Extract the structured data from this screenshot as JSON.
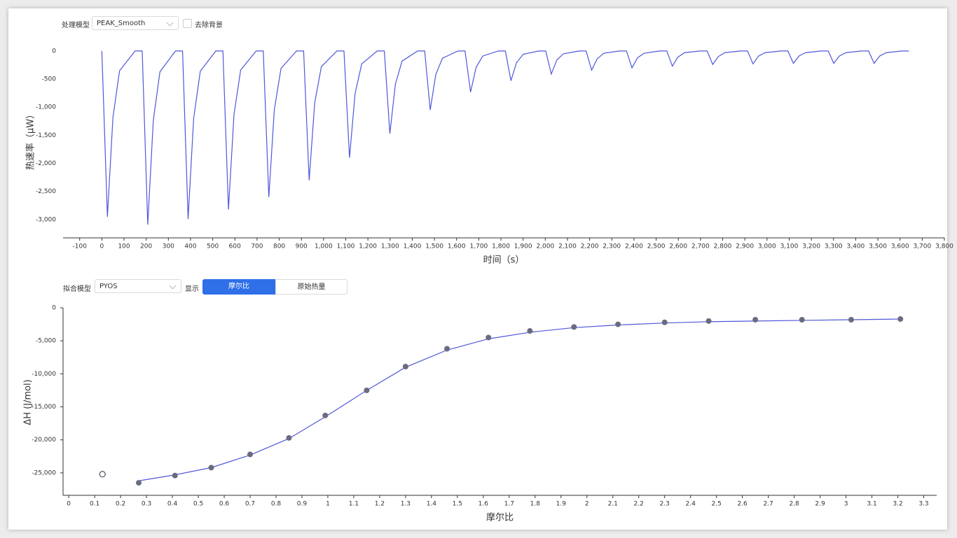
{
  "controls_top": {
    "model_label": "处理模型",
    "model_value": "PEAK_Smooth",
    "checkbox_label": "去除背景"
  },
  "controls_bottom": {
    "fit_label": "拟合模型",
    "fit_value": "PYOS",
    "display_label": "显示",
    "tabs": [
      "摩尔比",
      "原始热量"
    ]
  },
  "chart_data": [
    {
      "type": "line",
      "x_label": "时间（s）",
      "y_label": "热速率（μW）",
      "color": "#4f57d9",
      "x": [
        0,
        25,
        50,
        80,
        150,
        182,
        207,
        232,
        262,
        332,
        364,
        389,
        414,
        444,
        514,
        546,
        571,
        596,
        626,
        696,
        728,
        753,
        778,
        808,
        878,
        910,
        935,
        960,
        990,
        1060,
        1092,
        1117,
        1142,
        1172,
        1242,
        1274,
        1299,
        1324,
        1354,
        1424,
        1456,
        1481,
        1506,
        1536,
        1606,
        1638,
        1663,
        1688,
        1718,
        1788,
        1820,
        1845,
        1870,
        1900,
        1970,
        2002,
        2027,
        2052,
        2082,
        2152,
        2184,
        2209,
        2234,
        2264,
        2334,
        2366,
        2391,
        2416,
        2446,
        2516,
        2548,
        2573,
        2598,
        2628,
        2698,
        2730,
        2755,
        2780,
        2810,
        2880,
        2912,
        2937,
        2962,
        2992,
        3062,
        3094,
        3119,
        3144,
        3174,
        3244,
        3276,
        3301,
        3326,
        3356,
        3426,
        3458,
        3483,
        3508,
        3538,
        3608,
        3640
      ],
      "values": [
        0,
        -2950,
        -1180,
        -350,
        0,
        0,
        -3090,
        -1240,
        -370,
        0,
        0,
        -2990,
        -1200,
        -360,
        0,
        0,
        -2820,
        -1130,
        -340,
        0,
        0,
        -2600,
        -1040,
        -310,
        0,
        0,
        -2300,
        -920,
        -280,
        0,
        0,
        -1900,
        -760,
        -230,
        0,
        0,
        -1470,
        -590,
        -180,
        0,
        0,
        -1050,
        -420,
        -130,
        0,
        0,
        -730,
        -290,
        -90,
        0,
        0,
        -530,
        -210,
        -60,
        0,
        0,
        -410,
        -160,
        -50,
        0,
        0,
        -340,
        -140,
        -40,
        0,
        0,
        -300,
        -120,
        -40,
        0,
        0,
        -270,
        -110,
        -30,
        0,
        0,
        -240,
        -100,
        -30,
        0,
        0,
        -230,
        -90,
        -30,
        0,
        0,
        -220,
        -90,
        -30,
        0,
        0,
        -220,
        -90,
        -30,
        0,
        0,
        -220,
        -90,
        -30,
        0,
        0
      ],
      "xlim": [
        -175,
        3800
      ],
      "ylim": [
        -3325,
        160
      ],
      "xticks": [
        -100,
        0,
        100,
        200,
        300,
        400,
        500,
        600,
        700,
        800,
        900,
        {
          "value": 1000,
          "label": "1,000"
        },
        {
          "value": 1100,
          "label": "1,100"
        },
        {
          "value": 1200,
          "label": "1,200"
        },
        {
          "value": 1300,
          "label": "1,300"
        },
        {
          "value": 1400,
          "label": "1,400"
        },
        {
          "value": 1500,
          "label": "1,500"
        },
        {
          "value": 1600,
          "label": "1,600"
        },
        {
          "value": 1700,
          "label": "1,700"
        },
        {
          "value": 1800,
          "label": "1,800"
        },
        {
          "value": 1900,
          "label": "1,900"
        },
        {
          "value": 2000,
          "label": "2,000"
        },
        {
          "value": 2100,
          "label": "2,100"
        },
        {
          "value": 2200,
          "label": "2,200"
        },
        {
          "value": 2300,
          "label": "2,300"
        },
        {
          "value": 2400,
          "label": "2,400"
        },
        {
          "value": 2500,
          "label": "2,500"
        },
        {
          "value": 2600,
          "label": "2,600"
        },
        {
          "value": 2700,
          "label": "2,700"
        },
        {
          "value": 2800,
          "label": "2,800"
        },
        {
          "value": 2900,
          "label": "2,900"
        },
        {
          "value": 3000,
          "label": "3,000"
        },
        {
          "value": 3100,
          "label": "3,100"
        },
        {
          "value": 3200,
          "label": "3,200"
        },
        {
          "value": 3300,
          "label": "3,300"
        },
        {
          "value": 3400,
          "label": "3,400"
        },
        {
          "value": 3500,
          "label": "3,500"
        },
        {
          "value": 3600,
          "label": "3,600"
        },
        {
          "value": 3700,
          "label": "3,700"
        },
        {
          "value": 3800,
          "label": "3,800"
        }
      ],
      "yticks": [
        0,
        -500,
        {
          "value": -1000,
          "label": "-1,000"
        },
        {
          "value": -1500,
          "label": "-1,500"
        },
        {
          "value": -2000,
          "label": "-2,000"
        },
        {
          "value": -2500,
          "label": "-2,500"
        },
        {
          "value": -3000,
          "label": "-3,000"
        }
      ]
    },
    {
      "type": "scatter",
      "x_label": "摩尔比",
      "y_label": "ΔH (J/mol)",
      "series": [
        {
          "color": "#6b6b80",
          "marker": "filled",
          "x": [
            0.27,
            0.41,
            0.55,
            0.7,
            0.85,
            0.99,
            1.15,
            1.3,
            1.46,
            1.62,
            1.78,
            1.95,
            2.12,
            2.3,
            2.47,
            2.65,
            2.83,
            3.02,
            3.21
          ],
          "values": [
            -26500,
            -25400,
            -24200,
            -22200,
            -19700,
            -16300,
            -12500,
            -8900,
            -6200,
            -4500,
            -3500,
            -2900,
            -2500,
            -2200,
            -2000,
            -1800,
            -1800,
            -1800,
            -1700
          ]
        },
        {
          "color": "#6b6b80",
          "marker": "hollow",
          "x": [
            0.13
          ],
          "values": [
            -25200
          ]
        }
      ],
      "fit_line": {
        "color": "#4f57d9",
        "x": [
          0.27,
          0.41,
          0.55,
          0.7,
          0.85,
          0.99,
          1.07,
          1.15,
          1.3,
          1.46,
          1.62,
          1.78,
          1.95,
          2.12,
          2.3,
          2.47,
          2.65,
          2.83,
          3.02,
          3.21
        ],
        "values": [
          -26200,
          -25300,
          -24200,
          -22300,
          -19800,
          -16500,
          -14500,
          -12500,
          -9000,
          -6400,
          -4700,
          -3700,
          -3000,
          -2600,
          -2300,
          -2100,
          -2000,
          -1900,
          -1800,
          -1700
        ]
      },
      "xlim": [
        -0.022,
        3.35
      ],
      "ylim": [
        -28400,
        0
      ],
      "xticks": [
        0,
        0.1,
        0.2,
        0.3,
        0.4,
        0.5,
        0.6,
        0.7,
        0.8,
        0.9,
        1,
        1.1,
        1.2,
        1.3,
        1.4,
        1.5,
        1.6,
        1.7,
        1.8,
        1.9,
        2,
        2.1,
        2.2,
        2.3,
        2.4,
        2.5,
        2.6,
        2.7,
        2.8,
        2.9,
        3,
        3.1,
        3.2,
        3.3
      ],
      "yticks": [
        0,
        {
          "value": -5000,
          "label": "-5,000"
        },
        {
          "value": -10000,
          "label": "-10,000"
        },
        {
          "value": -15000,
          "label": "-15,000"
        },
        {
          "value": -20000,
          "label": "-20,000"
        },
        {
          "value": -25000,
          "label": "-25,000"
        }
      ]
    }
  ]
}
